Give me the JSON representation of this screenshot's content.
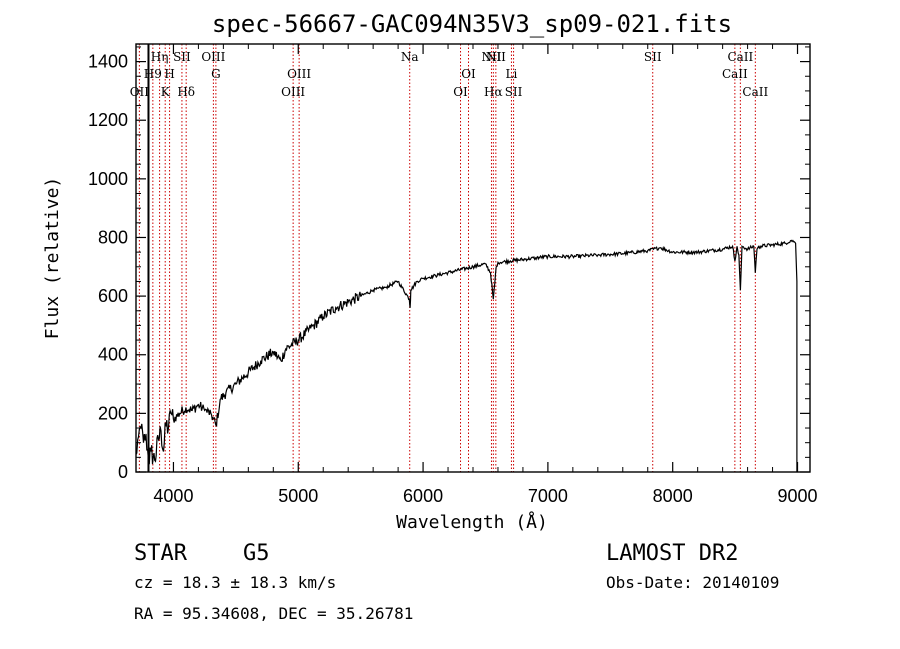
{
  "chart_data": {
    "type": "line",
    "title": "spec-56667-GAC094N35V3_sp09-021.fits",
    "xlabel": "Wavelength (Å)",
    "ylabel": "Flux (relative)",
    "xlim": [
      3700,
      9100
    ],
    "ylim": [
      0,
      1460
    ],
    "x_ticks": [
      4000,
      5000,
      6000,
      7000,
      8000,
      9000
    ],
    "y_ticks": [
      0,
      200,
      400,
      600,
      800,
      1000,
      1200,
      1400
    ],
    "grid": false,
    "series": [
      {
        "x": [
          3700,
          3720,
          3740,
          3760,
          3780,
          3800,
          3820,
          3850,
          3880,
          3900,
          3920,
          3940,
          3960,
          3980,
          4000,
          4050,
          4100,
          4150,
          4200,
          4250,
          4300,
          4340,
          4380,
          4420,
          4500,
          4600,
          4700,
          4800,
          4861,
          4900,
          5000,
          5100,
          5200,
          5300,
          5400,
          5500,
          5600,
          5700,
          5800,
          5890,
          5896,
          5902,
          5950,
          6000,
          6100,
          6200,
          6300,
          6400,
          6500,
          6540,
          6563,
          6586,
          6600,
          6700,
          6800,
          6900,
          7000,
          7200,
          7400,
          7600,
          7800,
          7900,
          8000,
          8200,
          8400,
          8480,
          8498,
          8515,
          8530,
          8542,
          8555,
          8600,
          8650,
          8662,
          8675,
          8700,
          8800,
          8900,
          8950,
          8970,
          8985,
          8995
        ],
        "y": [
          60,
          120,
          150,
          100,
          130,
          40,
          70,
          40,
          110,
          140,
          70,
          160,
          150,
          200,
          180,
          200,
          220,
          210,
          230,
          210,
          200,
          160,
          250,
          270,
          300,
          340,
          380,
          410,
          380,
          420,
          450,
          490,
          530,
          560,
          580,
          600,
          620,
          630,
          650,
          590,
          560,
          620,
          650,
          660,
          670,
          680,
          690,
          700,
          710,
          680,
          590,
          700,
          715,
          720,
          725,
          730,
          735,
          735,
          740,
          745,
          755,
          765,
          750,
          750,
          760,
          770,
          720,
          770,
          740,
          620,
          770,
          760,
          770,
          680,
          760,
          770,
          775,
          780,
          790,
          785,
          780,
          650
        ]
      }
    ],
    "line_markers": [
      {
        "label": "OII",
        "x": 3727,
        "row": 3
      },
      {
        "label": "H9",
        "x": 3835,
        "row": 2
      },
      {
        "label": "Hη",
        "x": 3889,
        "row": 1
      },
      {
        "label": "K",
        "x": 3934,
        "row": 3
      },
      {
        "label": "H",
        "x": 3969,
        "row": 2
      },
      {
        "label": "SII",
        "x": 4068,
        "row": 1
      },
      {
        "label": "Hδ",
        "x": 4102,
        "row": 3
      },
      {
        "label": "OIII",
        "x": 4320,
        "row": 1
      },
      {
        "label": "G",
        "x": 4340,
        "row": 2
      },
      {
        "label": "OIII",
        "x": 4959,
        "row": 3
      },
      {
        "label": "OIII",
        "x": 5007,
        "row": 2
      },
      {
        "label": "Na",
        "x": 5893,
        "row": 1
      },
      {
        "label": "OI",
        "x": 6300,
        "row": 3
      },
      {
        "label": "OI",
        "x": 6364,
        "row": 2
      },
      {
        "label": "NII",
        "x": 6548,
        "row": 1
      },
      {
        "label": "Hα",
        "x": 6563,
        "row": 3
      },
      {
        "label": "NII",
        "x": 6583,
        "row": 1
      },
      {
        "label": "Li",
        "x": 6708,
        "row": 2
      },
      {
        "label": "SII",
        "x": 6725,
        "row": 3
      },
      {
        "label": "SII",
        "x": 7840,
        "row": 1
      },
      {
        "label": "CaII",
        "x": 8498,
        "row": 2
      },
      {
        "label": "CaII",
        "x": 8542,
        "row": 1
      },
      {
        "label": "CaII",
        "x": 8662,
        "row": 3
      }
    ],
    "line_color": "#cc0000",
    "spectrum_color": "#000000"
  },
  "info": {
    "obj_class": "STAR",
    "subclass": "G5",
    "survey": "LAMOST DR2",
    "cz": "cz = 18.3 ± 18.3 km/s",
    "obs_date": "Obs-Date: 20140109",
    "coords": "RA =  95.34608, DEC =  35.26781"
  }
}
